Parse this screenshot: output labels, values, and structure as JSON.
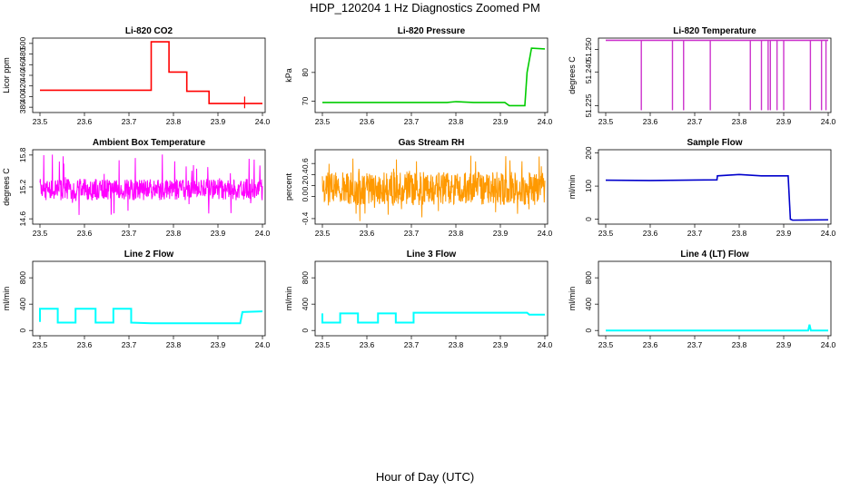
{
  "page": {
    "title": "HDP_120204  1 Hz Diagnostics Zoomed PM",
    "footer": "Hour of Day (UTC)"
  },
  "chart_data": [
    {
      "type": "line",
      "title": "Li-820 CO2",
      "xlabel": "",
      "ylabel": "Licor ppm",
      "color": "#ff0000",
      "xlim": [
        23.5,
        24.0
      ],
      "ylim": [
        370,
        510
      ],
      "x_ticks": [
        "23.5",
        "23.6",
        "23.7",
        "23.8",
        "23.9",
        "24.0"
      ],
      "y_ticks": [
        380,
        400,
        420,
        440,
        460,
        480,
        500
      ],
      "style": "steps",
      "segments": [
        {
          "x": [
            23.5,
            23.75
          ],
          "y": 412
        },
        {
          "x": [
            23.75,
            23.79
          ],
          "y": 503
        },
        {
          "x": [
            23.79,
            23.83
          ],
          "y": 446
        },
        {
          "x": [
            23.83,
            23.88
          ],
          "y": 410
        },
        {
          "x": [
            23.88,
            24.0
          ],
          "y": 387
        }
      ],
      "spikes": [
        {
          "x": 23.96,
          "y": [
            378,
            400
          ]
        }
      ]
    },
    {
      "type": "line",
      "title": "Li-820 Pressure",
      "xlabel": "",
      "ylabel": "kPa",
      "color": "#00cc00",
      "xlim": [
        23.5,
        24.0
      ],
      "ylim": [
        66,
        92
      ],
      "x_ticks": [
        "23.5",
        "23.6",
        "23.7",
        "23.8",
        "23.9",
        "24.0"
      ],
      "y_ticks": [
        70,
        80
      ],
      "points": [
        [
          23.5,
          69.5
        ],
        [
          23.78,
          69.5
        ],
        [
          23.8,
          69.8
        ],
        [
          23.84,
          69.5
        ],
        [
          23.91,
          69.5
        ],
        [
          23.92,
          68.4
        ],
        [
          23.955,
          68.4
        ],
        [
          23.96,
          80
        ],
        [
          23.97,
          88.5
        ],
        [
          24.0,
          88.2
        ]
      ]
    },
    {
      "type": "line",
      "title": "Li-820 Temperature",
      "xlabel": "",
      "ylabel": "degrees C",
      "color": "#cc33cc",
      "xlim": [
        23.5,
        24.0
      ],
      "ylim": [
        51.222,
        51.255
      ],
      "x_ticks": [
        "23.5",
        "23.6",
        "23.7",
        "23.8",
        "23.9",
        "24.0"
      ],
      "y_ticks": [
        51.225,
        51.24,
        51.25
      ],
      "y_tick_labels": [
        "51.225",
        "51.240",
        "51.250"
      ],
      "baseline": 51.254,
      "low": 51.223,
      "drops": [
        23.58,
        23.65,
        23.675,
        23.735,
        23.825,
        23.85,
        23.865,
        23.87,
        23.885,
        23.9,
        23.96,
        23.985,
        23.995
      ]
    },
    {
      "type": "line",
      "title": "Ambient Box Temperature",
      "xlabel": "",
      "ylabel": "degrees C",
      "color": "#ff00ff",
      "xlim": [
        23.5,
        24.0
      ],
      "ylim": [
        14.5,
        15.9
      ],
      "x_ticks": [
        "23.5",
        "23.6",
        "23.7",
        "23.8",
        "23.9",
        "24.0"
      ],
      "y_ticks": [
        14.6,
        15.2,
        15.8
      ],
      "y_tick_labels": [
        "14.6",
        "15.2",
        "15.8"
      ],
      "noise": {
        "mean": 15.15,
        "band": [
          14.95,
          15.35
        ],
        "range": [
          14.6,
          15.85
        ]
      }
    },
    {
      "type": "line",
      "title": "Gas Stream RH",
      "xlabel": "",
      "ylabel": "percent",
      "color": "#ff9900",
      "xlim": [
        23.5,
        24.0
      ],
      "ylim": [
        -0.5,
        0.85
      ],
      "x_ticks": [
        "23.5",
        "23.6",
        "23.7",
        "23.8",
        "23.9",
        "24.0"
      ],
      "y_ticks": [
        -0.4,
        0.0,
        0.2,
        0.4,
        0.6
      ],
      "y_tick_labels": [
        "-0.4",
        "0.0",
        "0.2",
        "0.4",
        "0.6"
      ],
      "noise": {
        "mean": 0.15,
        "band": [
          -0.15,
          0.45
        ],
        "range": [
          -0.45,
          0.75
        ]
      }
    },
    {
      "type": "line",
      "title": "Sample Flow",
      "xlabel": "",
      "ylabel": "ml/min",
      "color": "#0000cc",
      "xlim": [
        23.5,
        24.0
      ],
      "ylim": [
        -15,
        210
      ],
      "x_ticks": [
        "23.5",
        "23.6",
        "23.7",
        "23.8",
        "23.9",
        "24.0"
      ],
      "y_ticks": [
        0,
        100,
        200
      ],
      "points": [
        [
          23.5,
          118
        ],
        [
          23.6,
          117
        ],
        [
          23.75,
          119
        ],
        [
          23.751,
          131
        ],
        [
          23.8,
          135
        ],
        [
          23.85,
          131
        ],
        [
          23.91,
          131
        ],
        [
          23.915,
          0
        ],
        [
          23.92,
          -3
        ],
        [
          24.0,
          -2
        ]
      ]
    },
    {
      "type": "line",
      "title": "Line 2 Flow",
      "xlabel": "",
      "ylabel": "ml/min",
      "color": "#00ffff",
      "xlim": [
        23.5,
        24.0
      ],
      "ylim": [
        -80,
        1050
      ],
      "x_ticks": [
        "23.5",
        "23.6",
        "23.7",
        "23.8",
        "23.9",
        "24.0"
      ],
      "y_ticks": [
        0,
        400,
        800
      ],
      "y_tick_labels": [
        "0",
        "400",
        "800"
      ],
      "points": [
        [
          23.5,
          130
        ],
        [
          23.5,
          330
        ],
        [
          23.54,
          330
        ],
        [
          23.54,
          120
        ],
        [
          23.58,
          120
        ],
        [
          23.58,
          330
        ],
        [
          23.625,
          330
        ],
        [
          23.625,
          120
        ],
        [
          23.665,
          120
        ],
        [
          23.665,
          330
        ],
        [
          23.705,
          330
        ],
        [
          23.705,
          120
        ],
        [
          23.75,
          110
        ],
        [
          23.95,
          110
        ],
        [
          23.955,
          280
        ],
        [
          24.0,
          290
        ]
      ]
    },
    {
      "type": "line",
      "title": "Line 3 Flow",
      "xlabel": "",
      "ylabel": "ml/min",
      "color": "#00ffff",
      "xlim": [
        23.5,
        24.0
      ],
      "ylim": [
        -80,
        1050
      ],
      "x_ticks": [
        "23.5",
        "23.6",
        "23.7",
        "23.8",
        "23.9",
        "24.0"
      ],
      "y_ticks": [
        0,
        400,
        800
      ],
      "y_tick_labels": [
        "0",
        "400",
        "800"
      ],
      "points": [
        [
          23.5,
          260
        ],
        [
          23.5,
          120
        ],
        [
          23.54,
          120
        ],
        [
          23.54,
          260
        ],
        [
          23.58,
          260
        ],
        [
          23.58,
          120
        ],
        [
          23.625,
          120
        ],
        [
          23.625,
          260
        ],
        [
          23.665,
          260
        ],
        [
          23.665,
          120
        ],
        [
          23.705,
          120
        ],
        [
          23.705,
          270
        ],
        [
          23.96,
          270
        ],
        [
          23.965,
          240
        ],
        [
          24.0,
          240
        ]
      ]
    },
    {
      "type": "line",
      "title": "Line 4 (LT) Flow",
      "xlabel": "",
      "ylabel": "ml/min",
      "color": "#00ffff",
      "xlim": [
        23.5,
        24.0
      ],
      "ylim": [
        -80,
        1050
      ],
      "x_ticks": [
        "23.5",
        "23.6",
        "23.7",
        "23.8",
        "23.9",
        "24.0"
      ],
      "y_ticks": [
        0,
        400,
        800
      ],
      "y_tick_labels": [
        "0",
        "400",
        "800"
      ],
      "points": [
        [
          23.5,
          0
        ],
        [
          23.955,
          0
        ],
        [
          23.958,
          90
        ],
        [
          23.961,
          0
        ],
        [
          24.0,
          0
        ]
      ]
    }
  ]
}
